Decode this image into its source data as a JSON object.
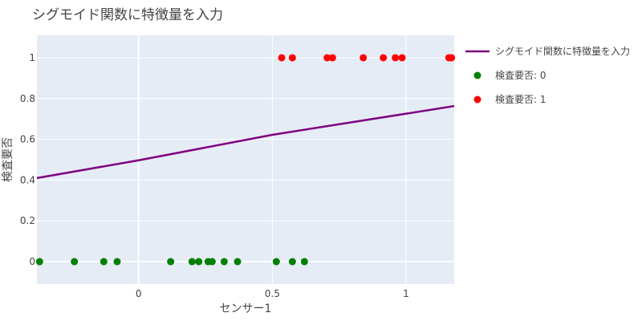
{
  "chart_data": {
    "type": "scatter",
    "title": "シグモイド関数に特徴量を入力",
    "xlabel": "センサー1",
    "ylabel": "検査要否",
    "xlim": [
      -0.38,
      1.18
    ],
    "ylim": [
      -0.11,
      1.11
    ],
    "xticks": [
      0,
      0.5,
      1
    ],
    "xtick_labels": [
      "0",
      "0.5",
      "1"
    ],
    "yticks": [
      0,
      0.2,
      0.4,
      0.6,
      0.8,
      1
    ],
    "ytick_labels": [
      "0",
      "0.2",
      "0.4",
      "0.6",
      "0.8",
      "1"
    ],
    "grid": true,
    "legend_position": "right",
    "series": [
      {
        "name": "シグモイド関数に特徴量を入力",
        "type": "line",
        "color": "#800080",
        "x": [
          -0.38,
          0.0,
          0.5,
          1.18
        ],
        "y": [
          0.41,
          0.497,
          0.622,
          0.763
        ]
      },
      {
        "name": "検査要否: 0",
        "type": "scatter",
        "color": "#008000",
        "x": [
          -0.37,
          -0.24,
          -0.13,
          -0.08,
          0.12,
          0.2,
          0.225,
          0.26,
          0.275,
          0.32,
          0.37,
          0.515,
          0.575,
          0.62
        ],
        "y": [
          0,
          0,
          0,
          0,
          0,
          0,
          0,
          0,
          0,
          0,
          0,
          0,
          0,
          0
        ]
      },
      {
        "name": "検査要否: 1",
        "type": "scatter",
        "color": "#ff0000",
        "x": [
          0.535,
          0.575,
          0.705,
          0.725,
          0.84,
          0.915,
          0.96,
          0.985,
          1.16,
          1.17
        ],
        "y": [
          1,
          1,
          1,
          1,
          1,
          1,
          1,
          1,
          1,
          1
        ]
      }
    ]
  }
}
